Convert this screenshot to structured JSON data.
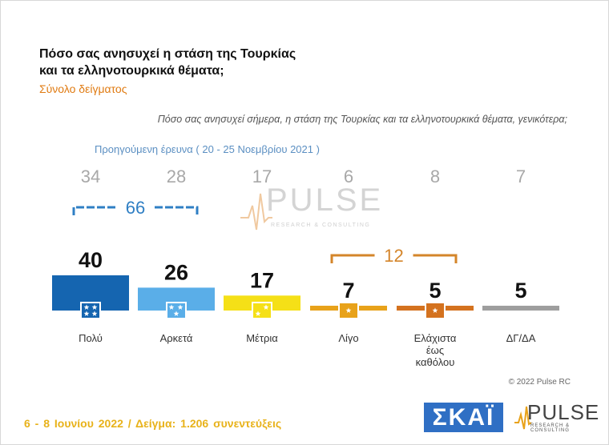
{
  "title_line1": "Πόσο σας ανησυχεί η στάση της Τουρκίας",
  "title_line2": "και τα ελληνοτουρκικά θέματα;",
  "subtitle": "Σύνολο δείγματος",
  "question": "Πόσο σας ανησυχεί σήμερα, η στάση της Τουρκίας και τα ελληνοτουρκικά θέματα, γενικότερα;",
  "previous_survey_label": "Προηγούμενη έρευνα ( 20 - 25 Νοεμβρίου 2021 )",
  "watermark": {
    "brand": "PULSE",
    "tagline": "RESEARCH & CONSULTING"
  },
  "copyright": "© 2022 Pulse RC",
  "footer": "6 - 8 Ιουνίου 2022 / Δείγμα: 1.206 συνεντεύξεις",
  "logos": {
    "skai": "ΣΚΑΪ",
    "pulse": "PULSE",
    "pulse_tagline": "RESEARCH & CONSULTING"
  },
  "colors": {
    "bar_colors": [
      "#1565b0",
      "#5aaee8",
      "#f5e017",
      "#e8a21a",
      "#d4721f",
      "#9e9e9e"
    ],
    "previous_values": "#a8a8a8",
    "bracket_blue": "#2f7fc4",
    "bracket_orange": "#d4852a"
  },
  "chart_data": {
    "type": "bar",
    "categories": [
      [
        "Πολύ"
      ],
      [
        "Αρκετά"
      ],
      [
        "Μέτρια"
      ],
      [
        "Λίγο"
      ],
      [
        "Ελάχιστα",
        "έως",
        "καθόλου"
      ],
      [
        "ΔΓ/ΔΑ"
      ]
    ],
    "series": [
      {
        "values": [
          40,
          26,
          17,
          7,
          5,
          5
        ]
      },
      {
        "name": "Προηγούμενη έρευνα ( 20 - 25 Νοεμβρίου 2021 )",
        "values": [
          34,
          28,
          17,
          6,
          8,
          7
        ]
      }
    ],
    "stars": [
      4,
      3,
      2,
      1,
      1,
      0
    ],
    "groupings": [
      {
        "label": "66",
        "from": 0,
        "to": 1
      },
      {
        "label": "12",
        "from": 3,
        "to": 4
      }
    ]
  }
}
